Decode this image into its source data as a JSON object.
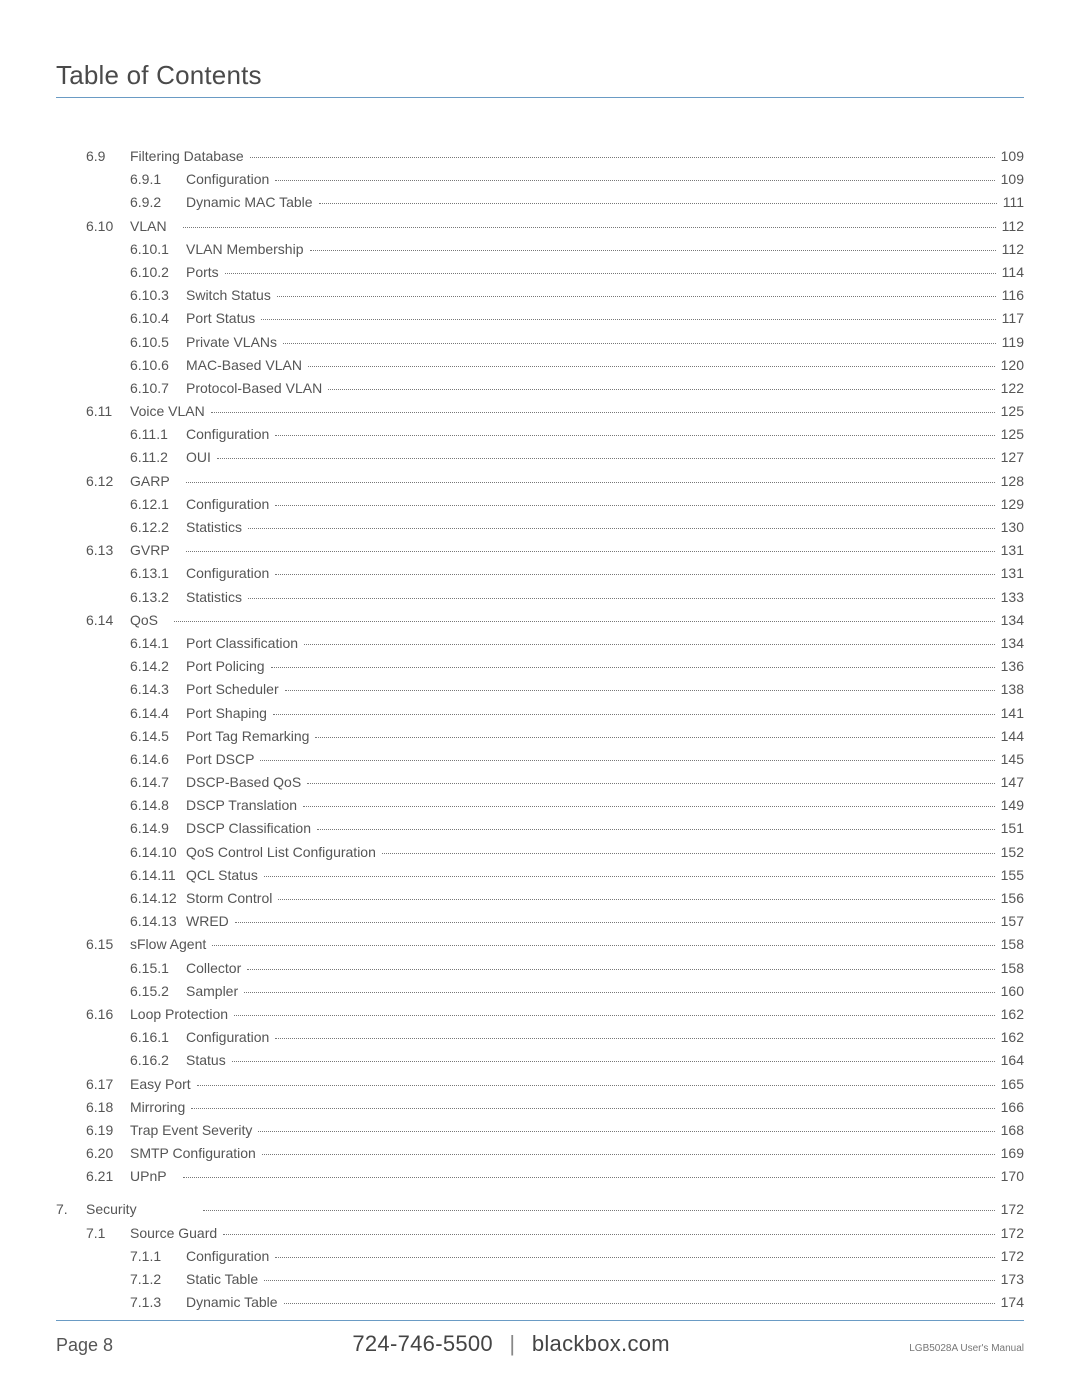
{
  "header": {
    "title": "Table of Contents"
  },
  "footer": {
    "page_label": "Page 8",
    "phone": "724-746-5500",
    "site": "blackbox.com",
    "manual": "LGB5028A User's Manual"
  },
  "toc": [
    {
      "chap": "",
      "sec": "6.9",
      "sub": "",
      "label": "Filtering Database",
      "page": "109",
      "subpos": "sec"
    },
    {
      "chap": "",
      "sec": "",
      "sub": "6.9.1",
      "label": "Configuration",
      "page": "109"
    },
    {
      "chap": "",
      "sec": "",
      "sub": "6.9.2",
      "label": "Dynamic MAC Table",
      "page": "111"
    },
    {
      "chap": "",
      "sec": "6.10",
      "sub": "",
      "label": "VLAN",
      "page": "112",
      "subpos": "sub",
      "leadonly": true
    },
    {
      "chap": "",
      "sec": "",
      "sub": "6.10.1",
      "label": "VLAN Membership",
      "page": "112"
    },
    {
      "chap": "",
      "sec": "",
      "sub": "6.10.2",
      "label": "Ports",
      "page": "114"
    },
    {
      "chap": "",
      "sec": "",
      "sub": "6.10.3",
      "label": "Switch Status",
      "page": "116"
    },
    {
      "chap": "",
      "sec": "",
      "sub": "6.10.4",
      "label": "Port Status",
      "page": "117"
    },
    {
      "chap": "",
      "sec": "",
      "sub": "6.10.5",
      "label": "Private VLANs",
      "page": "119"
    },
    {
      "chap": "",
      "sec": "",
      "sub": "6.10.6",
      "label": "MAC-Based VLAN",
      "page": "120"
    },
    {
      "chap": "",
      "sec": "",
      "sub": "6.10.7",
      "label": "Protocol-Based VLAN",
      "page": "122"
    },
    {
      "chap": "",
      "sec": "6.11",
      "sub": "",
      "label": "Voice VLAN",
      "page": "125",
      "subpos": "sec"
    },
    {
      "chap": "",
      "sec": "",
      "sub": "6.11.1",
      "label": "Configuration",
      "page": "125"
    },
    {
      "chap": "",
      "sec": "",
      "sub": "6.11.2",
      "label": "OUI",
      "page": "127"
    },
    {
      "chap": "",
      "sec": "6.12",
      "sub": "",
      "label": "GARP",
      "page": "128",
      "subpos": "sub",
      "leadonly": true
    },
    {
      "chap": "",
      "sec": "",
      "sub": "6.12.1",
      "label": "Configuration",
      "page": "129"
    },
    {
      "chap": "",
      "sec": "",
      "sub": "6.12.2",
      "label": "Statistics",
      "page": "130"
    },
    {
      "chap": "",
      "sec": "6.13",
      "sub": "",
      "label": "GVRP",
      "page": "131",
      "subpos": "sub",
      "leadonly": true
    },
    {
      "chap": "",
      "sec": "",
      "sub": "6.13.1",
      "label": "Configuration",
      "page": "131"
    },
    {
      "chap": "",
      "sec": "",
      "sub": "6.13.2",
      "label": "Statistics",
      "page": "133"
    },
    {
      "chap": "",
      "sec": "6.14",
      "sub": "",
      "label": "QoS",
      "page": "134",
      "subpos": "sub",
      "leadonly": true
    },
    {
      "chap": "",
      "sec": "",
      "sub": "6.14.1",
      "label": "Port Classification",
      "page": "134"
    },
    {
      "chap": "",
      "sec": "",
      "sub": "6.14.2",
      "label": "Port Policing",
      "page": "136"
    },
    {
      "chap": "",
      "sec": "",
      "sub": "6.14.3",
      "label": "Port Scheduler",
      "page": "138"
    },
    {
      "chap": "",
      "sec": "",
      "sub": "6.14.4",
      "label": "Port Shaping",
      "page": "141"
    },
    {
      "chap": "",
      "sec": "",
      "sub": "6.14.5",
      "label": "Port Tag Remarking",
      "page": "144"
    },
    {
      "chap": "",
      "sec": "",
      "sub": "6.14.6",
      "label": "Port DSCP",
      "page": "145"
    },
    {
      "chap": "",
      "sec": "",
      "sub": "6.14.7",
      "label": "DSCP-Based QoS",
      "page": "147"
    },
    {
      "chap": "",
      "sec": "",
      "sub": "6.14.8",
      "label": "DSCP Translation",
      "page": "149"
    },
    {
      "chap": "",
      "sec": "",
      "sub": "6.14.9",
      "label": "DSCP Classification",
      "page": "151"
    },
    {
      "chap": "",
      "sec": "",
      "sub": "6.14.10",
      "label": "QoS Control List Configuration",
      "page": "152"
    },
    {
      "chap": "",
      "sec": "",
      "sub": "6.14.11",
      "label": "QCL Status",
      "page": "155"
    },
    {
      "chap": "",
      "sec": "",
      "sub": "6.14.12",
      "label": "Storm Control",
      "page": "156"
    },
    {
      "chap": "",
      "sec": "",
      "sub": "6.14.13",
      "label": "WRED",
      "page": "157"
    },
    {
      "chap": "",
      "sec": "6.15",
      "sub": "",
      "label": "sFlow Agent",
      "page": "158",
      "subpos": "sec"
    },
    {
      "chap": "",
      "sec": "",
      "sub": "6.15.1",
      "label": "Collector",
      "page": "158"
    },
    {
      "chap": "",
      "sec": "",
      "sub": "6.15.2",
      "label": "Sampler",
      "page": "160"
    },
    {
      "chap": "",
      "sec": "6.16",
      "sub": "",
      "label": "Loop Protection",
      "page": "162",
      "subpos": "sec"
    },
    {
      "chap": "",
      "sec": "",
      "sub": "6.16.1",
      "label": "Configuration",
      "page": "162"
    },
    {
      "chap": "",
      "sec": "",
      "sub": "6.16.2",
      "label": "Status",
      "page": "164"
    },
    {
      "chap": "",
      "sec": "6.17",
      "sub": "",
      "label": "Easy Port",
      "page": "165",
      "subpos": "sec"
    },
    {
      "chap": "",
      "sec": "6.18",
      "sub": "",
      "label": "Mirroring",
      "page": "166",
      "subpos": "sec"
    },
    {
      "chap": "",
      "sec": "6.19",
      "sub": "",
      "label": "Trap Event Severity",
      "page": "168",
      "subpos": "sec"
    },
    {
      "chap": "",
      "sec": "6.20",
      "sub": "",
      "label": "SMTP Configuration",
      "page": "169",
      "subpos": "sec"
    },
    {
      "chap": "",
      "sec": "6.21",
      "sub": "",
      "label": "UPnP",
      "page": "170",
      "subpos": "sub",
      "leadonly": true
    },
    {
      "spacer": true
    },
    {
      "chap": "7.",
      "sec": "",
      "sub": "",
      "label": "Security",
      "page": "172",
      "subpos": "chap",
      "leadpad": true
    },
    {
      "chap": "",
      "sec": "7.1",
      "sub": "",
      "label": "Source Guard",
      "page": "172",
      "subpos": "sec"
    },
    {
      "chap": "",
      "sec": "",
      "sub": "7.1.1",
      "label": "Configuration",
      "page": "172"
    },
    {
      "chap": "",
      "sec": "",
      "sub": "7.1.2",
      "label": "Static Table",
      "page": "173"
    },
    {
      "chap": "",
      "sec": "",
      "sub": "7.1.3",
      "label": "Dynamic Table",
      "page": "174"
    }
  ]
}
